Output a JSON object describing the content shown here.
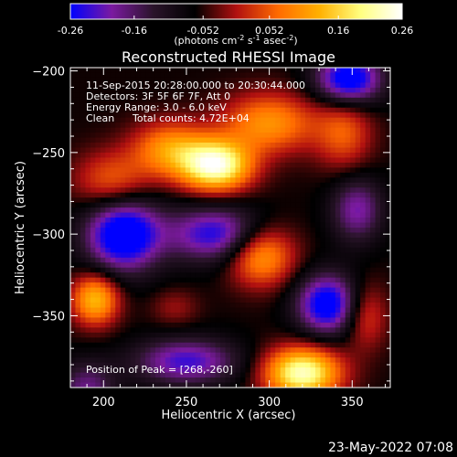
{
  "chart_data": {
    "type": "heatmap",
    "title": "Reconstructed RHESSI Image",
    "xlabel": "Heliocentric X (arcsec)",
    "ylabel": "Heliocentric Y (arcsec)",
    "xlim": [
      180,
      373
    ],
    "ylim": [
      -394,
      -198
    ],
    "xticks": [
      200,
      250,
      300,
      350
    ],
    "yticks": [
      -200,
      -250,
      -300,
      -350
    ],
    "colorbar": {
      "range": [
        -0.26,
        0.26
      ],
      "ticks": [
        "-0.26",
        "-0.16",
        "-0.052",
        "0.052",
        "0.16",
        "0.26"
      ],
      "ticks_values": [
        -0.26,
        -0.16,
        -0.052,
        0.052,
        0.16,
        0.26
      ],
      "unit_label": "(photons cm",
      "unit_exp1": "-2",
      "unit_mid": " s",
      "unit_exp2": "-1",
      "unit_mid2": " asec",
      "unit_exp3": "-2",
      "unit_end": ")",
      "colors": [
        "#0000ff",
        "#7b1aa0",
        "#2a142a",
        "#000000",
        "#b01010",
        "#ff6a00",
        "#ffb000",
        "#ffff80",
        "#ffffff"
      ]
    },
    "annotations": [
      "11-Sep-2015 20:28:00.000 to 20:30:44.000",
      "Detectors: 3F 5F 6F 7F, Att 0",
      "Energy Range: 3.0 - 6.0 keV",
      "Clean",
      "Total counts: 4.72E+04"
    ],
    "peak_label": "Position of Peak = [268,-260]",
    "peak": [
      268,
      -260
    ],
    "sources": [
      {
        "x": 268,
        "y": -258,
        "amp": 0.3,
        "sx": 15,
        "sy": 11
      },
      {
        "x": 240,
        "y": -248,
        "amp": 0.16,
        "sx": 16,
        "sy": 12
      },
      {
        "x": 300,
        "y": -232,
        "amp": 0.16,
        "sx": 20,
        "sy": 13
      },
      {
        "x": 345,
        "y": -238,
        "amp": 0.11,
        "sx": 12,
        "sy": 16
      },
      {
        "x": 205,
        "y": -268,
        "amp": 0.12,
        "sx": 16,
        "sy": 13
      },
      {
        "x": 195,
        "y": -340,
        "amp": 0.2,
        "sx": 10,
        "sy": 11
      },
      {
        "x": 295,
        "y": -313,
        "amp": 0.18,
        "sx": 14,
        "sy": 13
      },
      {
        "x": 320,
        "y": -385,
        "amp": 0.29,
        "sx": 16,
        "sy": 11
      },
      {
        "x": 358,
        "y": -350,
        "amp": 0.1,
        "sx": 9,
        "sy": 14
      },
      {
        "x": 243,
        "y": -345,
        "amp": 0.05,
        "sx": 10,
        "sy": 8
      },
      {
        "x": 348,
        "y": -205,
        "amp": -0.24,
        "sx": 14,
        "sy": 11
      },
      {
        "x": 212,
        "y": -300,
        "amp": -0.26,
        "sx": 16,
        "sy": 16
      },
      {
        "x": 268,
        "y": -300,
        "amp": -0.19,
        "sx": 20,
        "sy": 12
      },
      {
        "x": 335,
        "y": -343,
        "amp": -0.23,
        "sx": 13,
        "sy": 13
      },
      {
        "x": 250,
        "y": -378,
        "amp": -0.17,
        "sx": 22,
        "sy": 10
      },
      {
        "x": 353,
        "y": -285,
        "amp": -0.14,
        "sx": 11,
        "sy": 14
      },
      {
        "x": 190,
        "y": -395,
        "amp": -0.12,
        "sx": 12,
        "sy": 12
      }
    ]
  },
  "footer": {
    "date": "23-May-2022 07:08"
  }
}
